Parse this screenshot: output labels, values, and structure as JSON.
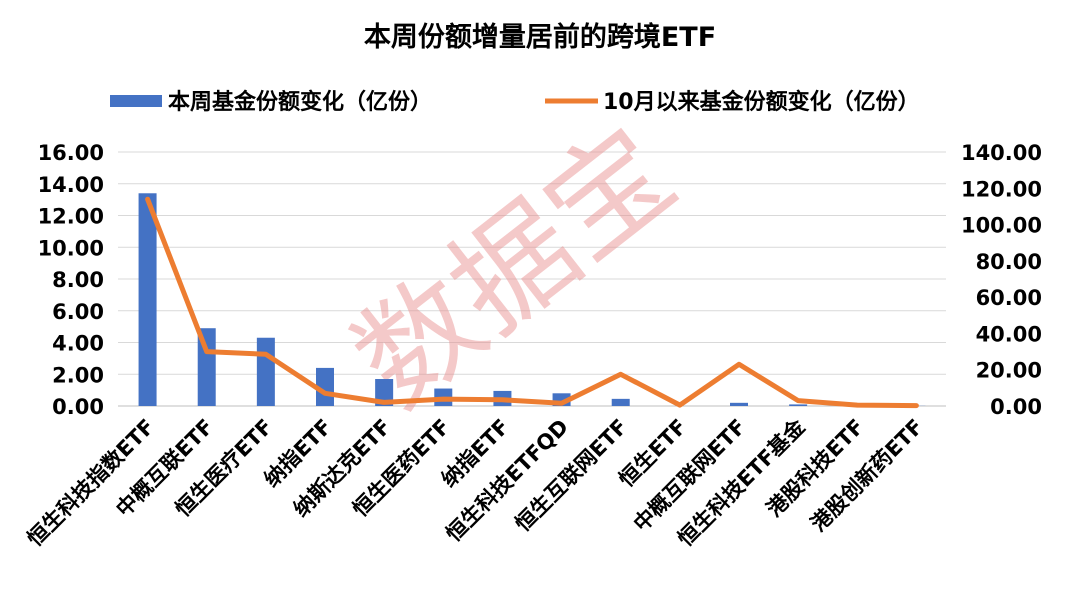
{
  "watermark": "数据宝",
  "chart_data": {
    "type": "bar",
    "title": "本周份额增量居前的跨境ETF",
    "legend_position": "top",
    "grid": true,
    "categories": [
      "恒生科技指数ETF",
      "中概互联ETF",
      "恒生医疗ETF",
      "纳指ETF",
      "纳斯达克ETF",
      "恒生医药ETF",
      "纳指ETF",
      "恒生科技ETFQD",
      "恒生互联网ETF",
      "恒生ETF",
      "中概互联网ETF",
      "恒生科技ETF基金",
      "港股科技ETF",
      "港股创新药ETF"
    ],
    "series": [
      {
        "name": "本周基金份额变化（亿份）",
        "type": "bar",
        "axis": "left",
        "color": "#4472C4",
        "values": [
          13.4,
          4.9,
          4.3,
          2.4,
          1.7,
          1.1,
          0.95,
          0.8,
          0.45,
          0.0,
          0.2,
          0.1,
          0.02,
          0.01
        ]
      },
      {
        "name": "10月以来基金份额变化（亿份）",
        "type": "line",
        "axis": "right",
        "color": "#ED7D31",
        "values": [
          114,
          30,
          28.5,
          7,
          2,
          3.8,
          3.4,
          1.5,
          17.5,
          0.5,
          23,
          3,
          0.5,
          0.2
        ]
      }
    ],
    "left_axis": {
      "ylim": [
        0,
        16
      ],
      "ticks": [
        "0.00",
        "2.00",
        "4.00",
        "6.00",
        "8.00",
        "10.00",
        "12.00",
        "14.00",
        "16.00"
      ]
    },
    "right_axis": {
      "ylim": [
        0,
        140
      ],
      "ticks": [
        "0.00",
        "20.00",
        "40.00",
        "60.00",
        "80.00",
        "100.00",
        "120.00",
        "140.00"
      ]
    }
  }
}
